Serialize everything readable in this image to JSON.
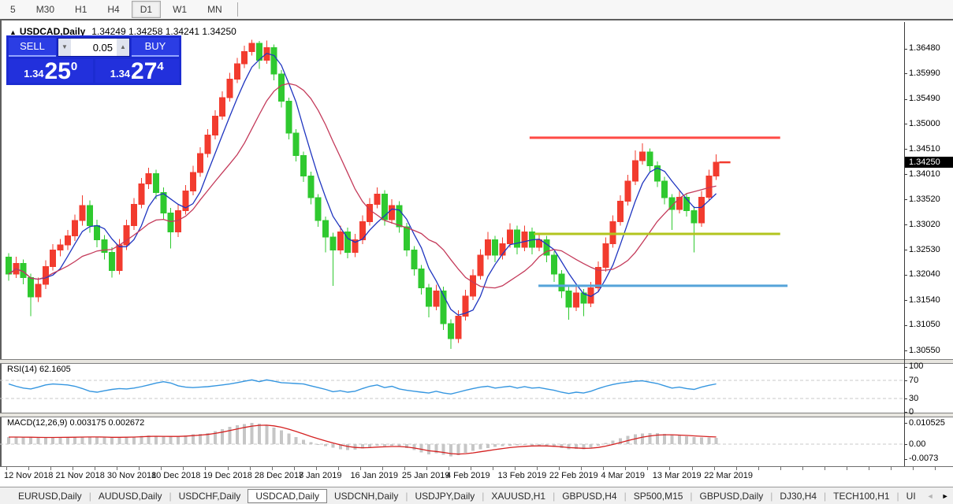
{
  "toolbar": {
    "periods": [
      {
        "label": "5",
        "selected": false
      },
      {
        "label": "M30",
        "selected": false
      },
      {
        "label": "H1",
        "selected": false
      },
      {
        "label": "H4",
        "selected": false
      },
      {
        "label": "D1",
        "selected": true
      },
      {
        "label": "W1",
        "selected": false
      },
      {
        "label": "MN",
        "selected": false
      }
    ]
  },
  "chart_header": {
    "collapse_icon": "▲",
    "symbol": "USDCAD,Daily",
    "quotes": "1.34249 1.34258 1.34241 1.34250"
  },
  "trade_panel": {
    "sell_label": "SELL",
    "buy_label": "BUY",
    "volume": "0.05",
    "vol_down_icon": "▼",
    "vol_up_icon": "▲",
    "sell_price": {
      "prefix": "1.34",
      "big": "25",
      "sup": "0"
    },
    "buy_price": {
      "prefix": "1.34",
      "big": "27",
      "sup": "4"
    }
  },
  "price_axis": {
    "ticks": [
      "1.36480",
      "1.35990",
      "1.35490",
      "1.35000",
      "1.34510",
      "1.34010",
      "1.33520",
      "1.33020",
      "1.32530",
      "1.32040",
      "1.31540",
      "1.31050",
      "1.30550"
    ],
    "current": "1.34250"
  },
  "rsi_panel": {
    "label": "RSI(14) 62.1605",
    "axis_ticks": [
      {
        "text": "100",
        "value": 100
      },
      {
        "text": "70",
        "value": 70
      },
      {
        "text": "30",
        "value": 30
      },
      {
        "text": "0",
        "value": 0
      }
    ],
    "levels": [
      70,
      30
    ]
  },
  "macd_panel": {
    "label": "MACD(12,26,9) 0.003175 0.002672",
    "axis_ticks": [
      {
        "text": "0.010525",
        "value": 10.525
      },
      {
        "text": "0.00",
        "value": 0
      },
      {
        "text": "-0.0073",
        "value": -7.3
      }
    ]
  },
  "time_axis": {
    "labels": [
      {
        "text": "12 Nov 2018",
        "i": 0
      },
      {
        "text": "21 Nov 2018",
        "i": 7
      },
      {
        "text": "30 Nov 2018",
        "i": 14
      },
      {
        "text": "10 Dec 2018",
        "i": 20
      },
      {
        "text": "19 Dec 2018",
        "i": 27
      },
      {
        "text": "28 Dec 2018",
        "i": 34
      },
      {
        "text": "7 Jan 2019",
        "i": 40
      },
      {
        "text": "16 Jan 2019",
        "i": 47
      },
      {
        "text": "25 Jan 2019",
        "i": 54
      },
      {
        "text": "4 Feb 2019",
        "i": 60
      },
      {
        "text": "13 Feb 2019",
        "i": 67
      },
      {
        "text": "22 Feb 2019",
        "i": 74
      },
      {
        "text": "4 Mar 2019",
        "i": 81
      },
      {
        "text": "13 Mar 2019",
        "i": 88
      },
      {
        "text": "22 Mar 2019",
        "i": 95
      }
    ]
  },
  "tabbar": {
    "tabs": [
      {
        "label": "EURUSD,Daily",
        "active": false
      },
      {
        "label": "AUDUSD,Daily",
        "active": false
      },
      {
        "label": "USDCHF,Daily",
        "active": false
      },
      {
        "label": "USDCAD,Daily",
        "active": true
      },
      {
        "label": "USDCNH,Daily",
        "active": false
      },
      {
        "label": "USDJPY,Daily",
        "active": false
      },
      {
        "label": "XAUUSD,H1",
        "active": false
      },
      {
        "label": "GBPUSD,H4",
        "active": false
      },
      {
        "label": "SP500,M15",
        "active": false
      },
      {
        "label": "GBPUSD,Daily",
        "active": false
      },
      {
        "label": "DJ30,H4",
        "active": false
      },
      {
        "label": "TECH100,H1",
        "active": false
      },
      {
        "label": "UI",
        "active": false
      }
    ],
    "scroll_left_icon": "◄",
    "scroll_right_icon": "►"
  },
  "colors": {
    "bull": "#f23b2e",
    "bear": "#2fc92f",
    "ma_fast": "#1f35c0",
    "ma_slow": "#c43a5a",
    "rsi_line": "#3596e0",
    "level_dash": "#c8c8c8",
    "macd_hist": "#c6c6c6",
    "macd_signal": "#d42020",
    "hline_red": "#ff4a45",
    "hline_yellow": "#b2c41e",
    "hline_blue": "#55a3d9",
    "badge_bg": "#000000"
  },
  "chart_data": {
    "type": "candlestick",
    "title": "USDCAD,Daily",
    "ohlc_display": {
      "open": "1.34249",
      "high": "1.34258",
      "low": "1.34241",
      "close": "1.34250"
    },
    "price_range_labels": [
      1.3055,
      1.3648
    ],
    "current_price": 1.3425,
    "candles": [
      [
        1.3238,
        1.3246,
        1.3192,
        1.3205
      ],
      [
        1.3205,
        1.3239,
        1.3197,
        1.3226
      ],
      [
        1.3226,
        1.3234,
        1.3185,
        1.3198
      ],
      [
        1.3198,
        1.3206,
        1.3122,
        1.316
      ],
      [
        1.316,
        1.3198,
        1.315,
        1.3185
      ],
      [
        1.3185,
        1.3232,
        1.3176,
        1.322
      ],
      [
        1.322,
        1.3264,
        1.3212,
        1.3252
      ],
      [
        1.3252,
        1.3274,
        1.324,
        1.3262
      ],
      [
        1.3262,
        1.3292,
        1.3252,
        1.328
      ],
      [
        1.328,
        1.3322,
        1.327,
        1.331
      ],
      [
        1.331,
        1.336,
        1.33,
        1.334
      ],
      [
        1.334,
        1.335,
        1.3286,
        1.33
      ],
      [
        1.33,
        1.3312,
        1.3258,
        1.3272
      ],
      [
        1.3272,
        1.3282,
        1.3234,
        1.3248
      ],
      [
        1.3248,
        1.3258,
        1.3198,
        1.3212
      ],
      [
        1.3212,
        1.3274,
        1.3204,
        1.3262
      ],
      [
        1.3262,
        1.3312,
        1.3252,
        1.33
      ],
      [
        1.33,
        1.3354,
        1.3292,
        1.3342
      ],
      [
        1.3342,
        1.3394,
        1.3334,
        1.3382
      ],
      [
        1.3382,
        1.3414,
        1.3372,
        1.3402
      ],
      [
        1.3402,
        1.341,
        1.3352,
        1.3365
      ],
      [
        1.3365,
        1.3375,
        1.3312,
        1.3325
      ],
      [
        1.3325,
        1.3335,
        1.3255,
        1.3288
      ],
      [
        1.3288,
        1.3342,
        1.3278,
        1.333
      ],
      [
        1.333,
        1.338,
        1.3322,
        1.3368
      ],
      [
        1.3368,
        1.3418,
        1.336,
        1.3405
      ],
      [
        1.3405,
        1.3454,
        1.3396,
        1.3442
      ],
      [
        1.3442,
        1.349,
        1.3434,
        1.3478
      ],
      [
        1.3478,
        1.3527,
        1.347,
        1.3515
      ],
      [
        1.3515,
        1.3564,
        1.3508,
        1.3552
      ],
      [
        1.3552,
        1.36,
        1.3544,
        1.3588
      ],
      [
        1.3588,
        1.363,
        1.358,
        1.3618
      ],
      [
        1.3618,
        1.3654,
        1.361,
        1.3642
      ],
      [
        1.3642,
        1.3665,
        1.3634,
        1.3658
      ],
      [
        1.3658,
        1.3663,
        1.3608,
        1.3625
      ],
      [
        1.3625,
        1.3664,
        1.3618,
        1.365
      ],
      [
        1.365,
        1.3656,
        1.3586,
        1.3598
      ],
      [
        1.3598,
        1.3606,
        1.3532,
        1.3545
      ],
      [
        1.3545,
        1.3552,
        1.347,
        1.3482
      ],
      [
        1.3482,
        1.349,
        1.3426,
        1.3438
      ],
      [
        1.3438,
        1.3446,
        1.3386,
        1.3398
      ],
      [
        1.3398,
        1.3406,
        1.3342,
        1.3355
      ],
      [
        1.3355,
        1.3362,
        1.3298,
        1.331
      ],
      [
        1.331,
        1.3318,
        1.3248,
        1.3278
      ],
      [
        1.3278,
        1.3286,
        1.3182,
        1.3252
      ],
      [
        1.3252,
        1.33,
        1.3244,
        1.3288
      ],
      [
        1.3288,
        1.3296,
        1.3236,
        1.3248
      ],
      [
        1.3248,
        1.3284,
        1.3238,
        1.3272
      ],
      [
        1.3272,
        1.332,
        1.3264,
        1.3308
      ],
      [
        1.3308,
        1.3354,
        1.33,
        1.3342
      ],
      [
        1.3342,
        1.3375,
        1.3334,
        1.3362
      ],
      [
        1.3362,
        1.337,
        1.33,
        1.3312
      ],
      [
        1.3312,
        1.3352,
        1.3304,
        1.334
      ],
      [
        1.334,
        1.3348,
        1.3286,
        1.3298
      ],
      [
        1.3298,
        1.3306,
        1.324,
        1.3252
      ],
      [
        1.3252,
        1.326,
        1.3202,
        1.3215
      ],
      [
        1.3215,
        1.3223,
        1.3165,
        1.3178
      ],
      [
        1.3178,
        1.3186,
        1.312,
        1.3142
      ],
      [
        1.3142,
        1.3184,
        1.3134,
        1.3172
      ],
      [
        1.3172,
        1.318,
        1.3095,
        1.3108
      ],
      [
        1.3108,
        1.3116,
        1.3058,
        1.3078
      ],
      [
        1.3078,
        1.3134,
        1.307,
        1.3122
      ],
      [
        1.3122,
        1.3174,
        1.3114,
        1.3162
      ],
      [
        1.3162,
        1.3214,
        1.3154,
        1.3202
      ],
      [
        1.3202,
        1.3254,
        1.3194,
        1.3242
      ],
      [
        1.3242,
        1.3288,
        1.3234,
        1.3272
      ],
      [
        1.3272,
        1.328,
        1.3228,
        1.3242
      ],
      [
        1.3242,
        1.3277,
        1.3234,
        1.3265
      ],
      [
        1.3265,
        1.3305,
        1.3257,
        1.3292
      ],
      [
        1.3292,
        1.33,
        1.3244,
        1.3258
      ],
      [
        1.3258,
        1.33,
        1.325,
        1.3288
      ],
      [
        1.3288,
        1.3296,
        1.3244,
        1.3258
      ],
      [
        1.3258,
        1.3284,
        1.325,
        1.3272
      ],
      [
        1.3272,
        1.328,
        1.3228,
        1.3242
      ],
      [
        1.3242,
        1.325,
        1.319,
        1.3205
      ],
      [
        1.3205,
        1.3213,
        1.3158,
        1.3172
      ],
      [
        1.3172,
        1.318,
        1.3115,
        1.314
      ],
      [
        1.314,
        1.318,
        1.3132,
        1.3168
      ],
      [
        1.3168,
        1.3176,
        1.3122,
        1.3148
      ],
      [
        1.3148,
        1.319,
        1.314,
        1.3178
      ],
      [
        1.3178,
        1.323,
        1.317,
        1.3218
      ],
      [
        1.3218,
        1.3277,
        1.321,
        1.3265
      ],
      [
        1.3265,
        1.332,
        1.3257,
        1.3308
      ],
      [
        1.3308,
        1.336,
        1.33,
        1.3348
      ],
      [
        1.3348,
        1.34,
        1.334,
        1.3388
      ],
      [
        1.3388,
        1.3448,
        1.338,
        1.3428
      ],
      [
        1.3428,
        1.3462,
        1.342,
        1.3445
      ],
      [
        1.3445,
        1.3452,
        1.3406,
        1.3418
      ],
      [
        1.3418,
        1.3426,
        1.3376,
        1.3388
      ],
      [
        1.3388,
        1.3396,
        1.3342,
        1.3355
      ],
      [
        1.3355,
        1.3362,
        1.3292,
        1.3332
      ],
      [
        1.3332,
        1.3368,
        1.3324,
        1.3356
      ],
      [
        1.3356,
        1.3364,
        1.3318,
        1.333
      ],
      [
        1.333,
        1.3338,
        1.3248,
        1.3306
      ],
      [
        1.3306,
        1.3368,
        1.3298,
        1.3356
      ],
      [
        1.3356,
        1.341,
        1.3348,
        1.3398
      ],
      [
        1.3398,
        1.344,
        1.339,
        1.3425
      ]
    ],
    "overlays": [
      {
        "name": "ma-fast",
        "period": 5,
        "color_key": "ma_fast"
      },
      {
        "name": "ma-slow",
        "period": 12,
        "color_key": "ma_slow"
      }
    ],
    "hlines": [
      {
        "price": 1.3473,
        "color_key": "hline_red",
        "from_index": 71.0,
        "to_index": 105
      },
      {
        "price": 1.3284,
        "color_key": "hline_yellow",
        "from_index": 71.6,
        "to_index": 105
      },
      {
        "price": 1.3182,
        "color_key": "hline_blue",
        "from_index": 72.2,
        "to_index": 106
      }
    ],
    "rsi": {
      "period": 14,
      "current": 62.1605,
      "values": [
        62,
        57,
        53,
        51,
        55,
        60,
        62,
        61,
        60,
        57,
        52,
        46,
        44,
        47,
        50,
        52,
        51,
        53,
        56,
        60,
        64,
        67,
        64,
        58,
        55,
        54,
        55,
        56,
        58,
        60,
        62,
        65,
        68,
        71,
        67,
        71,
        68,
        65,
        64,
        63,
        62,
        58,
        54,
        50,
        45,
        47,
        44,
        46,
        52,
        57,
        60,
        54,
        57,
        51,
        48,
        46,
        44,
        42,
        46,
        42,
        40,
        44,
        48,
        52,
        55,
        57,
        53,
        55,
        57,
        53,
        56,
        53,
        54,
        51,
        48,
        44,
        41,
        44,
        42,
        46,
        52,
        57,
        61,
        64,
        66,
        68,
        69,
        66,
        63,
        58,
        53,
        55,
        52,
        50,
        55,
        59,
        62.2
      ]
    },
    "macd": {
      "params": "12,26,9",
      "main_current": 0.003175,
      "signal_current": 0.002672,
      "main_milli": [
        3.5,
        3.5,
        3.4,
        3.3,
        3.2,
        3.2,
        3.3,
        3.4,
        3.5,
        3.6,
        3.7,
        3.6,
        3.5,
        3.4,
        3.2,
        3.3,
        3.5,
        3.8,
        4.0,
        4.2,
        4.0,
        3.8,
        3.7,
        3.9,
        4.3,
        4.8,
        5.1,
        5.5,
        6.5,
        7.5,
        8.5,
        9.3,
        10.0,
        10.5,
        10.2,
        9.6,
        8.2,
        6.8,
        5.2,
        3.6,
        2.2,
        1.0,
        0.0,
        -1.0,
        -1.8,
        -2.5,
        -3.0,
        -2.8,
        -2.2,
        -1.5,
        -0.8,
        -1.0,
        -0.8,
        -1.2,
        -2.0,
        -3.0,
        -4.0,
        -5.0,
        -4.5,
        -5.2,
        -6.0,
        -5.5,
        -4.2,
        -3.4,
        -2.6,
        -1.9,
        -1.4,
        -1.0,
        -0.7,
        -0.5,
        -0.4,
        -0.5,
        -0.7,
        -1.0,
        -1.4,
        -2.0,
        -2.6,
        -2.3,
        -2.5,
        -1.8,
        -0.8,
        0.5,
        1.8,
        3.0,
        4.0,
        4.8,
        5.3,
        5.5,
        5.4,
        5.0,
        4.6,
        4.2,
        3.9,
        3.6,
        3.4,
        3.3,
        3.175
      ]
    }
  }
}
